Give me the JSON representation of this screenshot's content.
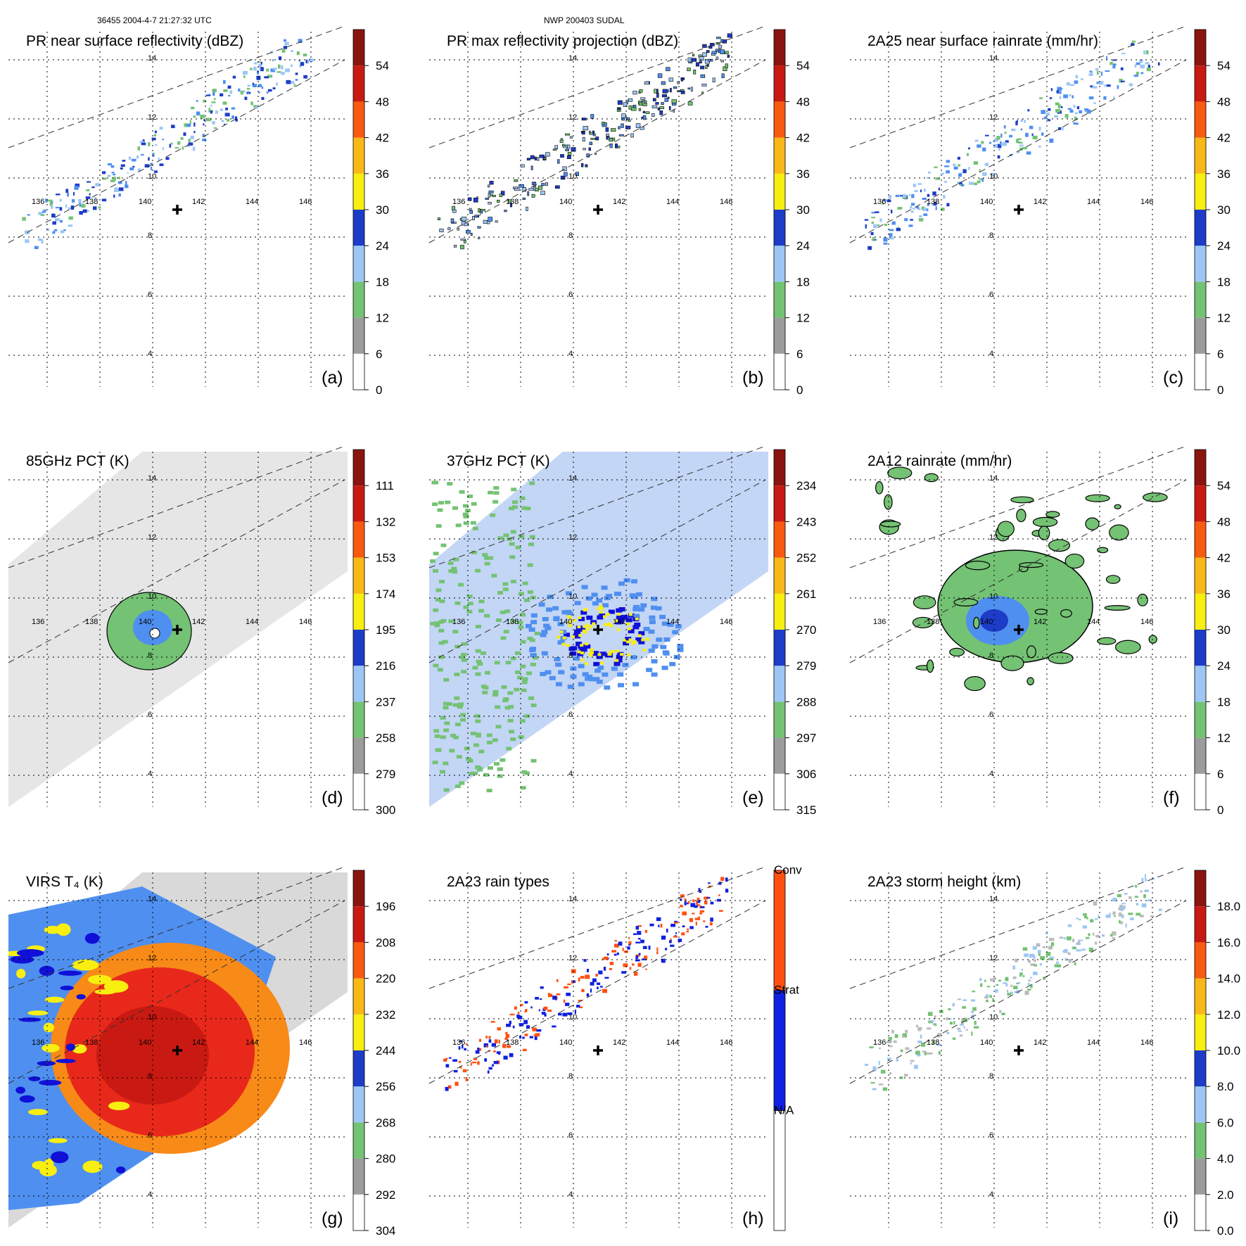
{
  "header": {
    "orbit_time": "36455 2004-4-7 21:27:32 UTC",
    "storm": "NWP 200403 SUDAL"
  },
  "colors": {
    "palette": [
      "#ffffff",
      "#d4d4d4",
      "#9c9c9c",
      "#74c274",
      "#c6d3f5",
      "#9dc6f5",
      "#4f8ff0",
      "#1d3cc8",
      "#1010d8",
      "#f8ee10",
      "#f8b818",
      "#f88a18",
      "#f85a10",
      "#e8281a",
      "#c81a12",
      "#8a1510",
      "#5a130f"
    ],
    "rain_type": {
      "conv": "#ff5010",
      "strat": "#1020e0",
      "na": "#ffffff"
    }
  },
  "lat_labels": [
    "4",
    "6",
    "8",
    "10",
    "12",
    "14"
  ],
  "lon_labels": [
    "136",
    "138",
    "140",
    "142",
    "144",
    "146"
  ],
  "panels": [
    {
      "title": "PR near surface reflectivity (dBZ)",
      "tag": "(a)",
      "cb_ticks": [
        "0",
        "6",
        "12",
        "18",
        "24",
        "30",
        "36",
        "42",
        "48",
        "54"
      ],
      "field": "swath-narrow"
    },
    {
      "title": "PR max reflectivity projection (dBZ)",
      "tag": "(b)",
      "cb_ticks": [
        "0",
        "6",
        "12",
        "18",
        "24",
        "30",
        "36",
        "42",
        "48",
        "54"
      ],
      "field": "swath-narrow"
    },
    {
      "title": "2A25 near surface rainrate (mm/hr)",
      "tag": "(c)",
      "cb_ticks": [
        "0",
        "6",
        "12",
        "18",
        "24",
        "30",
        "36",
        "42",
        "48",
        "54"
      ],
      "field": "swath-narrow"
    },
    {
      "title": "85GHz PCT (K)",
      "tag": "(d)",
      "cb_ticks": [
        "300",
        "279",
        "258",
        "237",
        "216",
        "195",
        "174",
        "153",
        "132",
        "111"
      ],
      "field": "swath-wide-gray"
    },
    {
      "title": "37GHz PCT (K)",
      "tag": "(e)",
      "cb_ticks": [
        "315",
        "306",
        "297",
        "288",
        "279",
        "270",
        "261",
        "252",
        "243",
        "234"
      ],
      "field": "swath-wide-blue"
    },
    {
      "title": "2A12 rainrate (mm/hr)",
      "tag": "(f)",
      "cb_ticks": [
        "0",
        "6",
        "12",
        "18",
        "24",
        "30",
        "36",
        "42",
        "48",
        "54"
      ],
      "field": "rain-blobs"
    },
    {
      "title": "VIRS T₄ (K)",
      "tag": "(g)",
      "cb_ticks": [
        "304",
        "292",
        "280",
        "268",
        "256",
        "244",
        "232",
        "220",
        "208",
        "196"
      ],
      "field": "swath-wide-ir"
    },
    {
      "title": "2A23 rain types",
      "tag": "(h)",
      "cb_labels": [
        "N/A",
        "Strat",
        "Conv"
      ],
      "field": "swath-narrow-types"
    },
    {
      "title": "2A23 storm height (km)",
      "tag": "(i)",
      "cb_ticks": [
        "0.0",
        "2.0",
        "4.0",
        "6.0",
        "8.0",
        "10.0",
        "12.0",
        "14.0",
        "16.0",
        "18.0"
      ],
      "field": "swath-narrow-gray"
    }
  ]
}
